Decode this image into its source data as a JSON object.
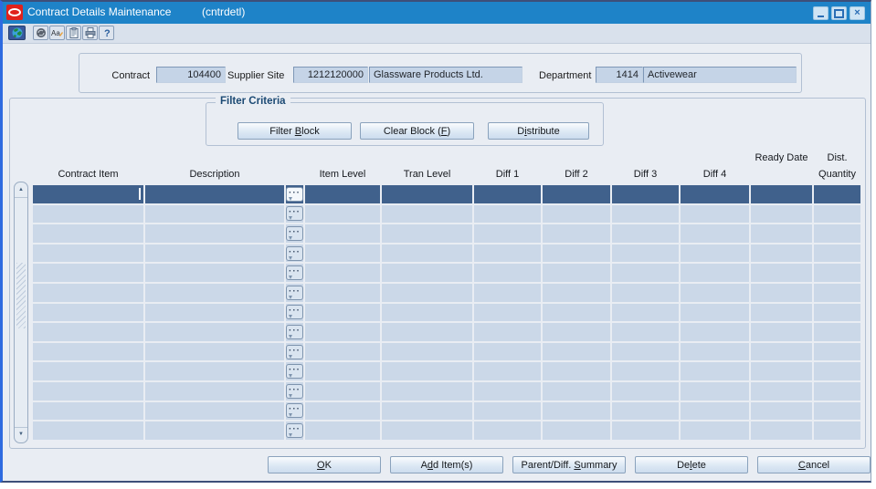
{
  "window": {
    "title": "Contract Details Maintenance",
    "subtitle": "(cntrdetl)"
  },
  "toolbar": {
    "icons": [
      "navigate-globe-icon",
      "refresh-icon",
      "edit-icon",
      "clipboard-icon",
      "print-icon",
      "help-icon"
    ]
  },
  "header": {
    "contract_label": "Contract",
    "contract_value": "104400",
    "supplier_site_label": "Supplier Site",
    "supplier_site_value": "1212120000",
    "supplier_site_name": "Glassware Products Ltd.",
    "department_label": "Department",
    "department_value": "1414",
    "department_name": "Activewear"
  },
  "filter": {
    "group_label": "Filter Criteria",
    "buttons": [
      {
        "name": "filter-block-button",
        "pre": "Filter ",
        "key": "B",
        "post": "lock"
      },
      {
        "name": "clear-block-button",
        "pre": "Clear Block (",
        "key": "F",
        "post": ")"
      },
      {
        "name": "distribute-button",
        "pre": "D",
        "key": "i",
        "post": "stribute"
      }
    ]
  },
  "table": {
    "columns": [
      {
        "id": "contract-item",
        "line1": "",
        "line2": "Contract Item"
      },
      {
        "id": "description",
        "line1": "",
        "line2": "Description"
      },
      {
        "id": "comment",
        "line1": "",
        "line2": ""
      },
      {
        "id": "item-level",
        "line1": "",
        "line2": "Item Level"
      },
      {
        "id": "tran-level",
        "line1": "",
        "line2": "Tran Level"
      },
      {
        "id": "diff-1",
        "line1": "",
        "line2": "Diff 1"
      },
      {
        "id": "diff-2",
        "line1": "",
        "line2": "Diff 2"
      },
      {
        "id": "diff-3",
        "line1": "",
        "line2": "Diff 3"
      },
      {
        "id": "diff-4",
        "line1": "",
        "line2": "Diff 4"
      },
      {
        "id": "ready-date",
        "line1": "Ready Date",
        "line2": ""
      },
      {
        "id": "dist-quantity",
        "line1": "Dist.",
        "line2": "Quantity"
      }
    ],
    "row_count": 13,
    "row_icon": "comment-bubble-icon",
    "selected_row_index": 0
  },
  "footer": {
    "buttons": [
      {
        "name": "ok-button",
        "pre": "",
        "key": "O",
        "post": "K"
      },
      {
        "name": "add-items-button",
        "pre": "A",
        "key": "d",
        "post": "d Item(s)"
      },
      {
        "name": "parent-diff-summary-button",
        "pre": "Parent/Diff. ",
        "key": "S",
        "post": "ummary"
      },
      {
        "name": "delete-button",
        "pre": "De",
        "key": "l",
        "post": "ete"
      },
      {
        "name": "cancel-button",
        "pre": "",
        "key": "C",
        "post": "ancel"
      }
    ]
  },
  "colors": {
    "titlebar_blue": "#1e83c8",
    "selected_row_blue": "#40618c",
    "row_blue": "#cbd8e8",
    "body_background": "#e9edf3",
    "oracle_logo_red": "#e0221c"
  }
}
